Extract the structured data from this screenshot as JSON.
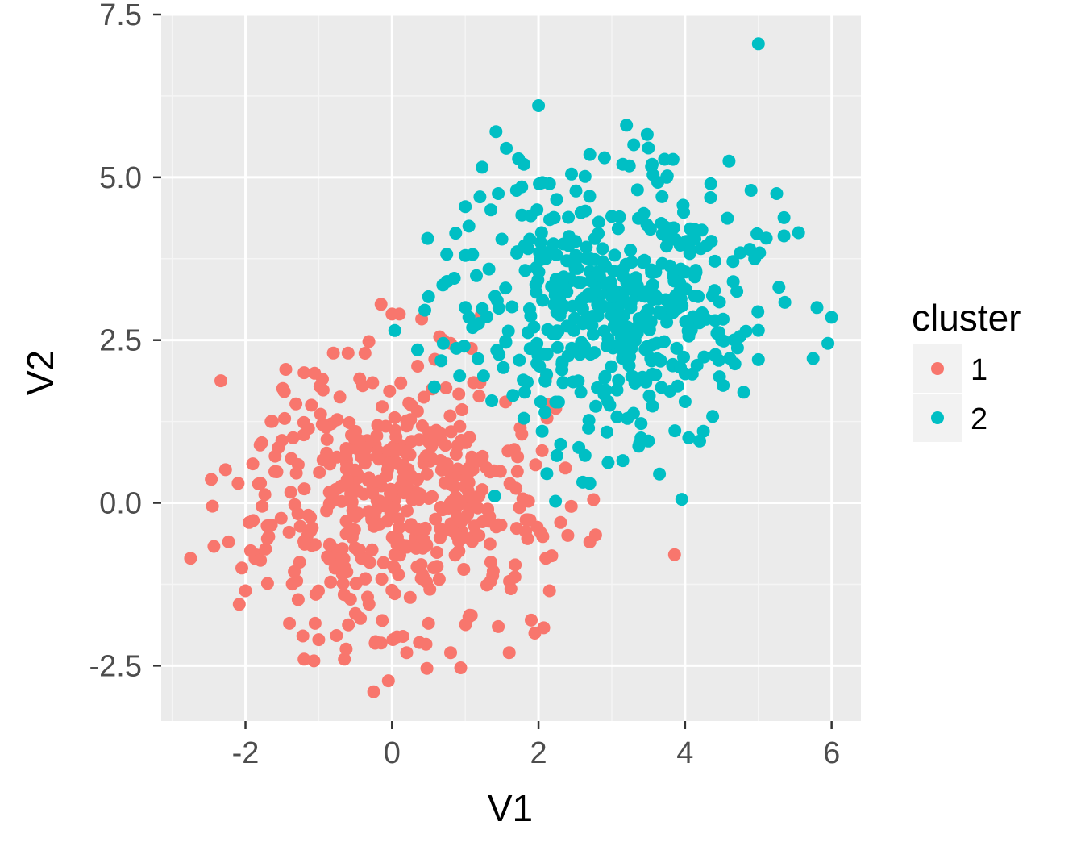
{
  "chart_data": {
    "type": "scatter",
    "title": "",
    "xlabel": "V1",
    "ylabel": "V2",
    "xlim": [
      -3.15,
      6.4
    ],
    "ylim": [
      -3.35,
      7.5
    ],
    "x_ticks": [
      -2,
      0,
      2,
      4,
      6
    ],
    "x_tick_labels": [
      "-2",
      "0",
      "2",
      "4",
      "6"
    ],
    "y_ticks": [
      -2.5,
      0.0,
      2.5,
      5.0,
      7.5
    ],
    "y_tick_labels": [
      "-2.5",
      "0.0",
      "2.5",
      "5.0",
      "7.5"
    ],
    "grid": true,
    "panel_background": "#EBEBEB",
    "legend": {
      "title": "cluster",
      "position": "right"
    },
    "series": [
      {
        "name": "1",
        "color": "#F8766D",
        "sample_size": 500,
        "center": [
          0.0,
          0.0
        ],
        "spread": 0.95,
        "points": [
          [
            -2.75,
            -0.85
          ],
          [
            -2.45,
            -0.05
          ],
          [
            -2.1,
            0.3
          ],
          [
            -2.05,
            -1.0
          ],
          [
            -2.0,
            -1.35
          ],
          [
            -1.95,
            -0.3
          ],
          [
            -1.9,
            0.6
          ],
          [
            -1.85,
            -0.8
          ],
          [
            -1.7,
            -0.55
          ],
          [
            -1.65,
            1.25
          ],
          [
            -1.55,
            0.85
          ],
          [
            -1.45,
            2.05
          ],
          [
            -1.4,
            -1.85
          ],
          [
            -1.35,
            1.0
          ],
          [
            -1.3,
            -1.2
          ],
          [
            -1.2,
            -2.4
          ],
          [
            -1.2,
            2.0
          ],
          [
            -1.05,
            -1.85
          ],
          [
            -1.0,
            -2.1
          ],
          [
            -0.95,
            1.9
          ],
          [
            -0.8,
            2.3
          ],
          [
            -0.65,
            -2.4
          ],
          [
            -0.6,
            2.3
          ],
          [
            -0.5,
            -1.7
          ],
          [
            -0.4,
            1.8
          ],
          [
            -0.25,
            -2.9
          ],
          [
            -0.15,
            3.05
          ],
          [
            0.0,
            2.9
          ],
          [
            0.1,
            2.9
          ],
          [
            0.15,
            -2.05
          ],
          [
            0.2,
            -2.3
          ],
          [
            0.35,
            2.1
          ],
          [
            0.5,
            -1.85
          ],
          [
            0.55,
            1.75
          ],
          [
            0.7,
            2.5
          ],
          [
            0.8,
            2.45
          ],
          [
            0.8,
            -2.3
          ],
          [
            1.05,
            -1.75
          ],
          [
            1.2,
            1.85
          ],
          [
            1.45,
            -1.9
          ],
          [
            1.55,
            1.55
          ],
          [
            1.6,
            -2.3
          ],
          [
            1.75,
            1.15
          ],
          [
            1.85,
            -0.55
          ],
          [
            1.9,
            -1.8
          ],
          [
            1.95,
            -2.0
          ],
          [
            2.05,
            0.8
          ],
          [
            2.1,
            -0.85
          ],
          [
            2.15,
            -1.35
          ],
          [
            2.3,
            -0.3
          ],
          [
            2.4,
            -0.5
          ],
          [
            2.7,
            -0.6
          ],
          [
            2.75,
            0.05
          ],
          [
            0.65,
            2.55
          ],
          [
            -1.1,
            1.5
          ]
        ]
      },
      {
        "name": "2",
        "color": "#00BFC4",
        "sample_size": 500,
        "center": [
          3.0,
          3.0
        ],
        "spread": 0.95,
        "points": [
          [
            5.0,
            7.05
          ],
          [
            2.0,
            6.1
          ],
          [
            3.2,
            5.8
          ],
          [
            3.3,
            5.5
          ],
          [
            3.5,
            5.45
          ],
          [
            2.7,
            5.35
          ],
          [
            2.9,
            5.3
          ],
          [
            1.8,
            5.2
          ],
          [
            3.15,
            5.2
          ],
          [
            3.55,
            5.2
          ],
          [
            4.6,
            5.25
          ],
          [
            2.45,
            5.05
          ],
          [
            3.75,
            5.0
          ],
          [
            2.15,
            4.9
          ],
          [
            4.35,
            4.9
          ],
          [
            1.7,
            4.8
          ],
          [
            5.25,
            4.75
          ],
          [
            1.45,
            4.75
          ],
          [
            4.9,
            4.8
          ],
          [
            1.2,
            4.7
          ],
          [
            1.0,
            4.55
          ],
          [
            1.35,
            4.5
          ],
          [
            1.05,
            4.25
          ],
          [
            5.55,
            4.15
          ],
          [
            5.35,
            4.1
          ],
          [
            1.5,
            4.05
          ],
          [
            4.95,
            3.75
          ],
          [
            1.0,
            3.8
          ],
          [
            0.75,
            3.4
          ],
          [
            0.85,
            3.45
          ],
          [
            1.55,
            3.3
          ],
          [
            1.0,
            3.0
          ],
          [
            5.8,
            3.0
          ],
          [
            6.0,
            2.85
          ],
          [
            5.95,
            2.45
          ],
          [
            1.05,
            2.85
          ],
          [
            0.7,
            2.45
          ],
          [
            5.0,
            2.65
          ],
          [
            5.0,
            2.2
          ],
          [
            4.8,
            1.7
          ],
          [
            1.25,
            1.95
          ],
          [
            1.65,
            1.65
          ],
          [
            1.8,
            1.3
          ],
          [
            2.05,
            1.1
          ],
          [
            2.3,
            0.9
          ],
          [
            2.55,
            0.85
          ],
          [
            2.7,
            0.3
          ],
          [
            3.15,
            0.65
          ],
          [
            3.5,
            0.95
          ],
          [
            4.05,
            1.0
          ],
          [
            4.25,
            1.1
          ],
          [
            4.2,
            0.95
          ],
          [
            4.5,
            2.5
          ],
          [
            3.0,
            4.4
          ],
          [
            2.5,
            3.6
          ]
        ]
      }
    ]
  }
}
